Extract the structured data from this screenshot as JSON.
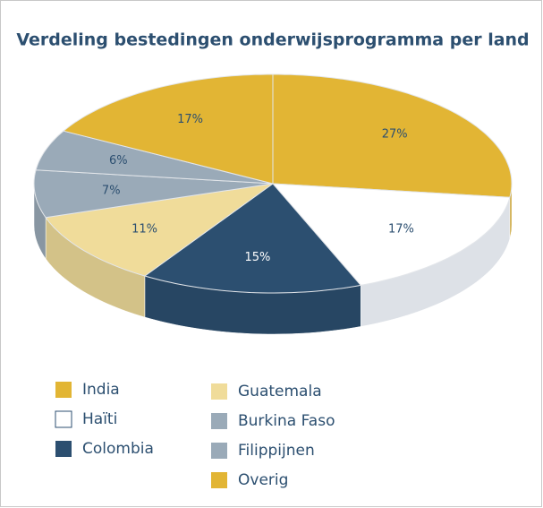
{
  "chart_data": {
    "type": "pie3d",
    "title": "Verdeling bestedingen onderwijsprogramma per land",
    "categories": [
      "India",
      "Haïti",
      "Colombia",
      "Guatemala",
      "Burkina Faso",
      "Filippijnen",
      "Overig"
    ],
    "values": [
      27,
      17,
      15,
      11,
      7,
      6,
      17
    ],
    "value_labels": [
      "27%",
      "17%",
      "15%",
      "11%",
      "7%",
      "6%",
      "17%"
    ],
    "colors": [
      "#e2b534",
      "#ffffff",
      "#2c4f70",
      "#f0dc9a",
      "#9aaab8",
      "#9aaab8",
      "#e2b534"
    ],
    "legend": "bottom"
  }
}
